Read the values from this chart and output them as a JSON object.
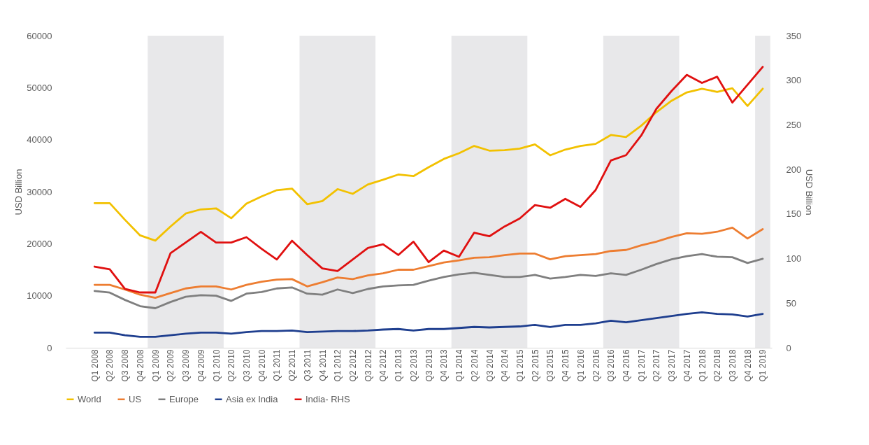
{
  "chart_data": {
    "type": "line",
    "categories": [
      "Q1 2008",
      "Q2 2008",
      "Q3 2008",
      "Q4 2008",
      "Q1 2009",
      "Q2 2009",
      "Q3 2009",
      "Q4 2009",
      "Q1 2010",
      "Q2 2010",
      "Q3 2010",
      "Q4 2010",
      "Q1 2011",
      "Q2 2011",
      "Q3 2011",
      "Q4 2011",
      "Q1 2012",
      "Q2 2012",
      "Q3 2012",
      "Q4 2012",
      "Q1 2013",
      "Q2 2013",
      "Q3 2013",
      "Q4 2013",
      "Q1 2014",
      "Q2 2014",
      "Q3 2014",
      "Q4 2014",
      "Q1 2015",
      "Q2 2015",
      "Q3 2015",
      "Q4 2015",
      "Q1 2016",
      "Q2 2016",
      "Q3 2016",
      "Q4 2016",
      "Q1 2017",
      "Q2 2017",
      "Q3 2017",
      "Q4 2017",
      "Q1 2018",
      "Q2 2018",
      "Q3 2018",
      "Q4 2018",
      "Q1 2019"
    ],
    "ylabel": "USD Billion",
    "y2label": "USD Billion",
    "ylim": [
      0,
      60000
    ],
    "yticks": [
      0,
      10000,
      20000,
      30000,
      40000,
      50000,
      60000
    ],
    "y2lim": [
      0,
      350
    ],
    "y2ticks": [
      0,
      50,
      100,
      150,
      200,
      250,
      300,
      350
    ],
    "grid": false,
    "legend": "bottom",
    "marker": "none",
    "line_style": "solid",
    "bands": [
      {
        "axis": "x",
        "from": "Q1 2009",
        "to": "Q1 2010",
        "color": "#e8e8ea"
      },
      {
        "axis": "x",
        "from": "Q3 2011",
        "to": "Q3 2012",
        "color": "#e8e8ea"
      },
      {
        "axis": "x",
        "from": "Q1 2014",
        "to": "Q1 2015",
        "color": "#e8e8ea"
      },
      {
        "axis": "x",
        "from": "Q3 2016",
        "to": "Q3 2017",
        "color": "#e8e8ea"
      },
      {
        "axis": "x",
        "from": "Q1 2019",
        "to": "Q1 2019",
        "color": "#e8e8ea"
      }
    ],
    "series": [
      {
        "name": "World",
        "color": "#f2c100",
        "values": [
          27800,
          27800,
          24600,
          21600,
          20600,
          23300,
          25800,
          26600,
          26800,
          24900,
          27700,
          29100,
          30300,
          30600,
          27600,
          28200,
          30500,
          29600,
          31400,
          32300,
          33300,
          33000,
          34700,
          36300,
          37400,
          38800,
          37900,
          38000,
          38300,
          39100,
          37000,
          38100,
          38800,
          39200,
          40900,
          40500,
          42700,
          45300,
          47500,
          49100,
          49800,
          49200,
          49900,
          46500,
          49800
        ]
      },
      {
        "name": "US",
        "color": "#ed7d31",
        "values": [
          12100,
          12100,
          11200,
          10200,
          9600,
          10500,
          11400,
          11800,
          11800,
          11200,
          12100,
          12700,
          13100,
          13200,
          11800,
          12600,
          13500,
          13200,
          13900,
          14300,
          15000,
          15000,
          15700,
          16400,
          16800,
          17300,
          17400,
          17800,
          18100,
          18100,
          17000,
          17600,
          17800,
          18000,
          18600,
          18800,
          19700,
          20400,
          21300,
          22000,
          21900,
          22300,
          23100,
          21000,
          22800
        ]
      },
      {
        "name": "Europe",
        "color": "#7f7f7f",
        "values": [
          10900,
          10600,
          9200,
          8000,
          7600,
          8800,
          9800,
          10100,
          10000,
          9000,
          10400,
          10700,
          11400,
          11600,
          10400,
          10200,
          11200,
          10500,
          11300,
          11800,
          12000,
          12100,
          12900,
          13600,
          14100,
          14400,
          14000,
          13600,
          13600,
          14000,
          13300,
          13600,
          14000,
          13800,
          14300,
          14000,
          15000,
          16100,
          17000,
          17600,
          18000,
          17500,
          17400,
          16300,
          17100
        ]
      },
      {
        "name": "Asia ex India",
        "color": "#1f3f8f",
        "values": [
          2900,
          2900,
          2400,
          2100,
          2100,
          2400,
          2700,
          2900,
          2900,
          2700,
          3000,
          3200,
          3200,
          3300,
          3000,
          3100,
          3200,
          3200,
          3300,
          3500,
          3600,
          3300,
          3600,
          3600,
          3800,
          4000,
          3900,
          4000,
          4100,
          4400,
          4000,
          4400,
          4400,
          4700,
          5200,
          4900,
          5300,
          5700,
          6100,
          6500,
          6800,
          6500,
          6400,
          6000,
          6500
        ]
      },
      {
        "name": "India- RHS",
        "color": "#e01010",
        "axis": "y2",
        "values": [
          91,
          88,
          66,
          62,
          62,
          106,
          118,
          130,
          118,
          118,
          124,
          111,
          99,
          120,
          104,
          89,
          86,
          99,
          112,
          116,
          104,
          119,
          96,
          109,
          102,
          129,
          125,
          136,
          145,
          160,
          157,
          167,
          158,
          177,
          210,
          216,
          238,
          268,
          288,
          306,
          297,
          304,
          275,
          295,
          315
        ]
      }
    ]
  }
}
